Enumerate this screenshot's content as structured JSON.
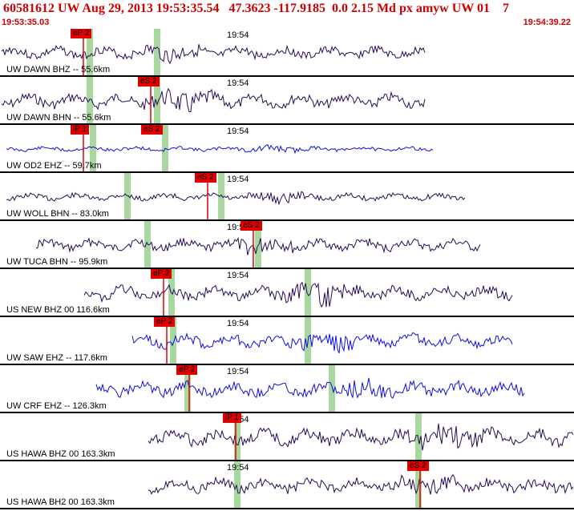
{
  "header": {
    "title": "60581612 UW Aug 29, 2013 19:53:35.54   47.3623 -117.9185  0.0 2.15 Md px amyw UW 01    7",
    "time_start": "19:53:35.03",
    "time_end": "19:54:39.22"
  },
  "minute_label": "19:54",
  "traces": [
    {
      "label": "UW DAWN BHZ -- 55.6km",
      "color": "#2a0a55",
      "pick": "eP 2",
      "pick2": ""
    },
    {
      "label": "UW DAWN BHN -- 55.6km",
      "color": "#2a0a55",
      "pick": "eS 2",
      "pick2": ""
    },
    {
      "label": "UW OD2 EHZ -- 59.7km",
      "color": "#1010dd",
      "pick": "iP 1",
      "pick2": "eS 2"
    },
    {
      "label": "UW WOLL BHN -- 83.0km",
      "color": "#2a0a55",
      "pick": "eS 2",
      "pick2": ""
    },
    {
      "label": "UW TUCA BHN -- 95.9km",
      "color": "#2a0a55",
      "pick": "eS 2",
      "pick2": ""
    },
    {
      "label": "US NEW BHZ 00 116.6km",
      "color": "#2a0a55",
      "pick": "eP 2",
      "pick2": ""
    },
    {
      "label": "UW SAW EHZ -- 117.6km",
      "color": "#1010dd",
      "pick": "eP 2",
      "pick2": ""
    },
    {
      "label": "UW CRF EHZ -- 126.3km",
      "color": "#1010dd",
      "pick": "eP 2",
      "pick2": ""
    },
    {
      "label": "US HAWA BHZ 00 163.3km",
      "color": "#2a0a55",
      "pick": "iP 1",
      "pick2": ""
    },
    {
      "label": "US HAWA BH2 00 163.3km",
      "color": "#2a0a55",
      "pick": "eS 2",
      "pick2": ""
    }
  ],
  "colors": {
    "title": "#d00000",
    "pick_flag": "#e00000",
    "window_band": "#a8d8a0",
    "separator": "#000000"
  }
}
